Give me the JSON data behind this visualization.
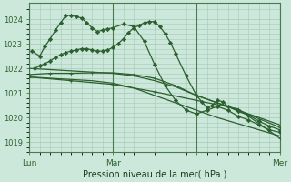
{
  "bg_color": "#cce8da",
  "grid_color": "#a8c8b8",
  "line_color": "#2d6030",
  "line_color2": "#3a7040",
  "ylabel_ticks": [
    1019,
    1020,
    1021,
    1022,
    1023,
    1024
  ],
  "ylim": [
    1018.6,
    1024.65
  ],
  "xlim": [
    0,
    48
  ],
  "xlabel": "Pression niveau de la mer( hPa )",
  "vline_positions": [
    0,
    16,
    32,
    48
  ],
  "xtick_positions": [
    0,
    16,
    32,
    48
  ],
  "xtick_labels": [
    "Lun",
    "Mar",
    "",
    "Mer"
  ],
  "series": [
    {
      "x": [
        0.5,
        2,
        3,
        4,
        5,
        6,
        7,
        8,
        9,
        10,
        11,
        12,
        13,
        14,
        15,
        16,
        18,
        20,
        22,
        24,
        26,
        28,
        30,
        32,
        34,
        36,
        38,
        40,
        42,
        44,
        46,
        48
      ],
      "y": [
        1022.7,
        1022.5,
        1022.9,
        1023.2,
        1023.55,
        1023.85,
        1024.15,
        1024.15,
        1024.1,
        1024.05,
        1023.85,
        1023.65,
        1023.5,
        1023.55,
        1023.6,
        1023.65,
        1023.8,
        1023.7,
        1023.1,
        1022.15,
        1021.3,
        1020.7,
        1020.3,
        1020.15,
        1020.3,
        1020.45,
        1020.3,
        1020.05,
        1019.9,
        1019.7,
        1019.5,
        1019.4
      ],
      "marker": "D",
      "ms": 2.2,
      "lw": 0.9
    },
    {
      "x": [
        0,
        4,
        8,
        12,
        16,
        20,
        24,
        28,
        32,
        36,
        40,
        44,
        48
      ],
      "y": [
        1022.0,
        1021.95,
        1021.9,
        1021.85,
        1021.8,
        1021.7,
        1021.5,
        1021.25,
        1020.9,
        1020.6,
        1020.3,
        1020.0,
        1019.7
      ],
      "marker": "None",
      "ms": 0,
      "lw": 0.9
    },
    {
      "x": [
        0,
        4,
        8,
        12,
        16,
        20,
        24,
        28,
        32,
        36,
        40,
        44,
        48
      ],
      "y": [
        1021.65,
        1021.6,
        1021.55,
        1021.5,
        1021.4,
        1021.2,
        1020.9,
        1020.6,
        1020.3,
        1020.0,
        1019.75,
        1019.5,
        1019.25
      ],
      "marker": "None",
      "ms": 0,
      "lw": 0.9
    },
    {
      "x": [
        0,
        4,
        8,
        12,
        16,
        20,
        24,
        28,
        32,
        36,
        40,
        44,
        48
      ],
      "y": [
        1021.75,
        1021.8,
        1021.8,
        1021.82,
        1021.82,
        1021.75,
        1021.6,
        1021.3,
        1020.9,
        1020.6,
        1020.3,
        1019.95,
        1019.6
      ],
      "marker": "+",
      "ms": 3,
      "lw": 0.9
    },
    {
      "x": [
        1,
        2,
        3,
        4,
        5,
        6,
        7,
        8,
        9,
        10,
        11,
        12,
        13,
        14,
        15,
        16,
        17,
        18,
        19,
        20,
        21,
        22,
        23,
        24,
        25,
        26,
        27,
        28,
        30,
        32,
        33,
        34,
        35,
        36,
        37,
        38,
        40,
        42,
        44,
        46,
        48
      ],
      "y": [
        1022.0,
        1022.1,
        1022.2,
        1022.3,
        1022.45,
        1022.55,
        1022.65,
        1022.7,
        1022.75,
        1022.8,
        1022.8,
        1022.75,
        1022.7,
        1022.7,
        1022.75,
        1022.85,
        1023.0,
        1023.2,
        1023.45,
        1023.65,
        1023.75,
        1023.85,
        1023.9,
        1023.9,
        1023.7,
        1023.4,
        1023.05,
        1022.6,
        1021.7,
        1020.9,
        1020.65,
        1020.4,
        1020.5,
        1020.7,
        1020.65,
        1020.45,
        1020.25,
        1020.1,
        1019.85,
        1019.65,
        1019.5
      ],
      "marker": "D",
      "ms": 2.2,
      "lw": 0.9
    },
    {
      "x": [
        0,
        8,
        16,
        24,
        32,
        40,
        48
      ],
      "y": [
        1021.65,
        1021.5,
        1021.35,
        1021.05,
        1020.7,
        1020.35,
        1019.15
      ],
      "marker": "+",
      "ms": 3,
      "lw": 0.9
    }
  ]
}
